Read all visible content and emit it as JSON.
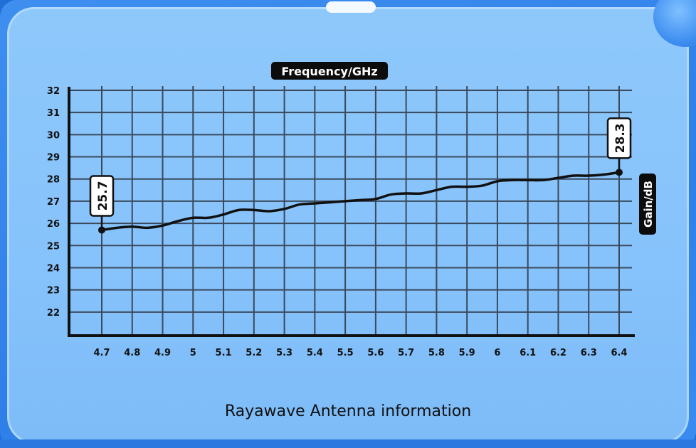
{
  "caption": "Rayawave Antenna information",
  "chart_data": {
    "type": "line",
    "title": "",
    "xlabel": "Frequency/GHz",
    "ylabel": "Gain/dB",
    "x_ticks": [
      "4.7",
      "4.8",
      "4.9",
      "5",
      "5.1",
      "5.2",
      "5.3",
      "5.4",
      "5.5",
      "5.6",
      "5.7",
      "5.8",
      "5.9",
      "6",
      "6.1",
      "6.2",
      "6.3",
      "6.4"
    ],
    "y_ticks": [
      "22",
      "23",
      "24",
      "25",
      "26",
      "27",
      "28",
      "29",
      "30",
      "31",
      "32"
    ],
    "xlim": [
      4.7,
      6.4
    ],
    "ylim": [
      21,
      32
    ],
    "grid": true,
    "line_color": "#111111",
    "series": [
      {
        "x": [
          4.7,
          4.75,
          4.8,
          4.85,
          4.9,
          4.95,
          5.0,
          5.05,
          5.1,
          5.15,
          5.2,
          5.25,
          5.3,
          5.35,
          5.4,
          5.45,
          5.5,
          5.55,
          5.6,
          5.65,
          5.7,
          5.75,
          5.8,
          5.85,
          5.9,
          5.95,
          6.0,
          6.05,
          6.1,
          6.15,
          6.2,
          6.25,
          6.3,
          6.35,
          6.4
        ],
        "values": [
          25.7,
          25.8,
          25.85,
          25.8,
          25.9,
          26.1,
          26.25,
          26.25,
          26.4,
          26.6,
          26.6,
          26.55,
          26.65,
          26.85,
          26.9,
          26.95,
          27.0,
          27.05,
          27.1,
          27.3,
          27.35,
          27.35,
          27.5,
          27.65,
          27.65,
          27.7,
          27.9,
          27.95,
          27.95,
          27.95,
          28.05,
          28.15,
          28.15,
          28.2,
          28.3
        ]
      }
    ],
    "annotations": [
      {
        "x": 4.7,
        "y": 25.7,
        "label": "25.7"
      },
      {
        "x": 6.4,
        "y": 28.3,
        "label": "28.3"
      }
    ]
  }
}
